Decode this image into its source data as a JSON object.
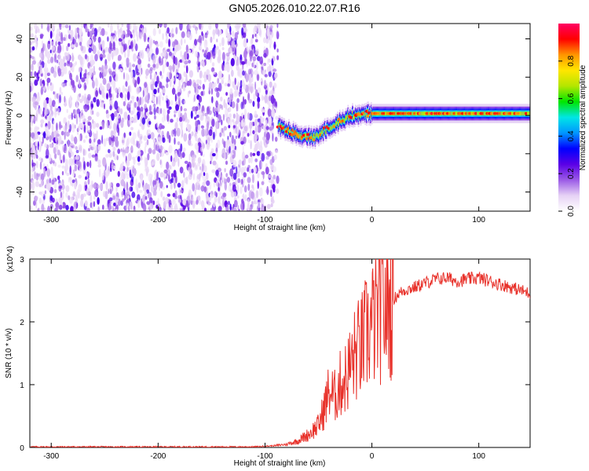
{
  "figure": {
    "title": "GN05.2026.010.22.07.R16"
  },
  "chart_data": [
    {
      "type": "heatmap",
      "xlabel": "Height of straight line (km)",
      "ylabel": "Frequency (Hz)",
      "xlim": [
        -320,
        148
      ],
      "ylim": [
        -50,
        48
      ],
      "xticks": [
        -300,
        -200,
        -100,
        0,
        100
      ],
      "yticks": [
        -40,
        -20,
        0,
        20,
        40
      ],
      "colorbar": {
        "label": "Normalized spectral amplitude",
        "range": [
          0,
          1
        ],
        "ticks": [
          "0.0",
          "0.2",
          "0.4",
          "0.6",
          "0.8"
        ],
        "colormap": [
          "#ffffff",
          "#e6d2f5",
          "#9a5ae6",
          "#5a00e6",
          "#0000ff",
          "#0096ff",
          "#00e6e6",
          "#00e600",
          "#b4e600",
          "#ffe600",
          "#ff9600",
          "#ff0000",
          "#ff0064"
        ]
      },
      "regions": [
        {
          "name": "noise",
          "x": [
            -320,
            -88
          ],
          "y": [
            -50,
            48
          ],
          "level": "low (0.0-0.15)"
        },
        {
          "name": "signal",
          "x": [
            -88,
            148
          ],
          "center_freq": [
            [
              -88,
              -6
            ],
            [
              -70,
              -10
            ],
            [
              -55,
              -12
            ],
            [
              -40,
              -6
            ],
            [
              -20,
              0
            ],
            [
              0,
              1
            ],
            [
              148,
              1
            ]
          ],
          "peak_level": 0.95
        }
      ]
    },
    {
      "type": "line",
      "xlabel": "Height of straight line (km)",
      "ylabel": "SNR (10 * v/v)",
      "y_multiplier": "(x10^4)",
      "xlim": [
        -320,
        148
      ],
      "ylim": [
        0,
        3
      ],
      "xticks": [
        -300,
        -200,
        -100,
        0,
        100
      ],
      "yticks": [
        0,
        1,
        2,
        3
      ],
      "color": "#e8312a",
      "series": [
        {
          "x": [
            -320,
            -300,
            -250,
            -200,
            -150,
            -110,
            -100,
            -90,
            -80,
            -70,
            -60,
            -50,
            -45,
            -40,
            -35,
            -30,
            -25,
            -20,
            -15,
            -10,
            -5,
            0,
            5,
            10,
            15,
            20,
            25,
            30,
            40,
            50,
            60,
            70,
            80,
            90,
            100,
            110,
            120,
            130,
            140,
            148
          ],
          "y": [
            0.01,
            0.01,
            0.01,
            0.01,
            0.01,
            0.01,
            0.02,
            0.03,
            0.05,
            0.1,
            0.2,
            0.35,
            0.6,
            0.9,
            0.8,
            1.0,
            1.1,
            1.3,
            1.5,
            1.6,
            1.8,
            1.95,
            2.1,
            2.2,
            2.25,
            2.35,
            2.45,
            2.5,
            2.55,
            2.62,
            2.68,
            2.7,
            2.65,
            2.68,
            2.7,
            2.65,
            2.6,
            2.55,
            2.5,
            2.45
          ]
        }
      ]
    }
  ]
}
